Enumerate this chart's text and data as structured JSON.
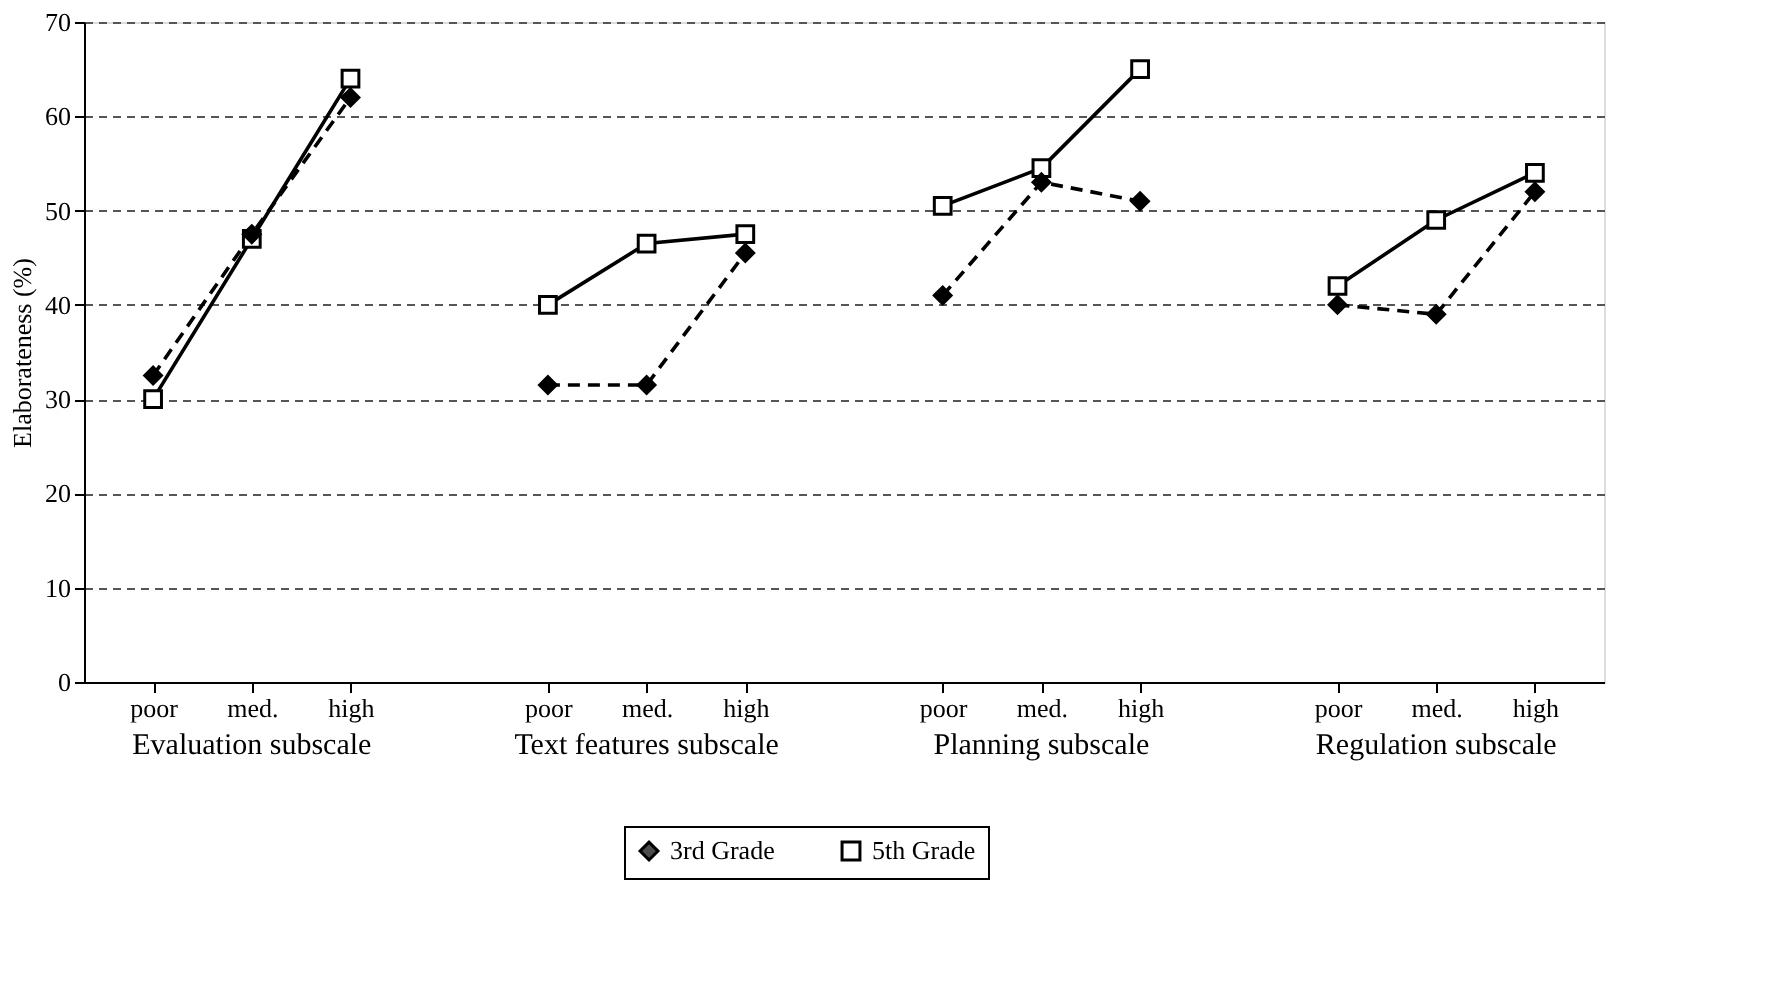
{
  "chart_data": {
    "type": "line",
    "ylabel": "Elaborateness (%)",
    "categories": [
      "poor",
      "med.",
      "high",
      null,
      "poor",
      "med.",
      "high",
      null,
      "poor",
      "med.",
      "high",
      null,
      "poor",
      "med.",
      "high"
    ],
    "series": [
      {
        "name": "3rd Grade",
        "color": "#000000",
        "line_style": "dashed",
        "marker": "diamond",
        "values": [
          32.5,
          47.5,
          62,
          null,
          31.5,
          31.5,
          45.5,
          null,
          41,
          53,
          51,
          null,
          40,
          39,
          52
        ]
      },
      {
        "name": "5th Grade",
        "color": "#000000",
        "line_style": "solid",
        "marker": "square",
        "values": [
          30,
          47,
          64,
          null,
          40,
          46.5,
          47.5,
          null,
          50.5,
          54.5,
          65,
          null,
          42,
          49,
          54
        ]
      }
    ],
    "annotations": [
      "Evaluation subscale",
      "Text features subscale",
      "Planning subscale",
      "Regulation subscale"
    ],
    "ylim": [
      0,
      70
    ],
    "yticks": [
      0,
      10,
      20,
      30,
      40,
      50,
      60,
      70
    ],
    "grid": "y",
    "legend": "bottom"
  }
}
